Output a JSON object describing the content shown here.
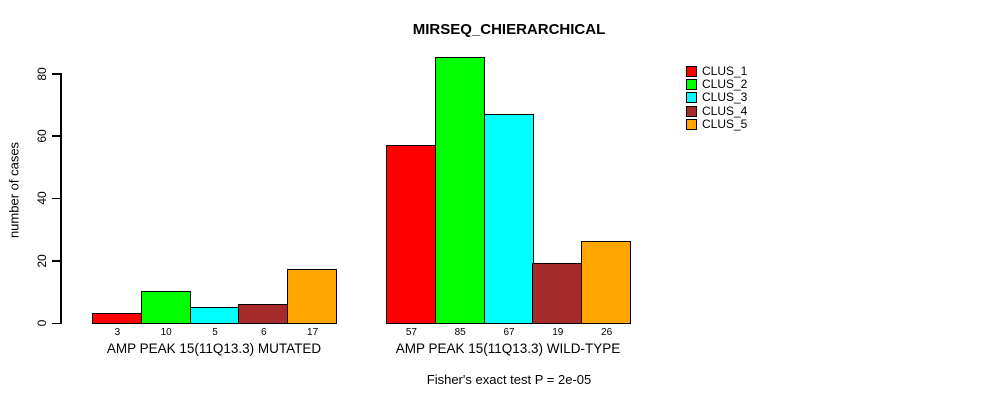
{
  "chart_data": {
    "type": "bar",
    "title": "MIRSEQ_CHIERARCHICAL",
    "xlabel": "",
    "ylabel": "number of cases",
    "ylim": [
      0,
      85
    ],
    "yticks": [
      0,
      20,
      40,
      60,
      80
    ],
    "grid": false,
    "legend_position": "right",
    "series": [
      {
        "name": "CLUS_1",
        "color": "#FF0000",
        "values": [
          3,
          57
        ]
      },
      {
        "name": "CLUS_2",
        "color": "#00FF00",
        "values": [
          10,
          85
        ]
      },
      {
        "name": "CLUS_3",
        "color": "#00FFFF",
        "values": [
          5,
          67
        ]
      },
      {
        "name": "CLUS_4",
        "color": "#A52A2A",
        "values": [
          6,
          19
        ]
      },
      {
        "name": "CLUS_5",
        "color": "#FFA500",
        "values": [
          17,
          26
        ]
      }
    ],
    "categories": [
      "AMP PEAK 15(11Q13.3) MUTATED",
      "AMP PEAK 15(11Q13.3) WILD-TYPE"
    ],
    "bar_value_labels": [
      [
        3,
        10,
        5,
        6,
        17
      ],
      [
        57,
        85,
        67,
        19,
        26
      ]
    ],
    "annotation": "Fisher's exact test P = 2e-05"
  }
}
